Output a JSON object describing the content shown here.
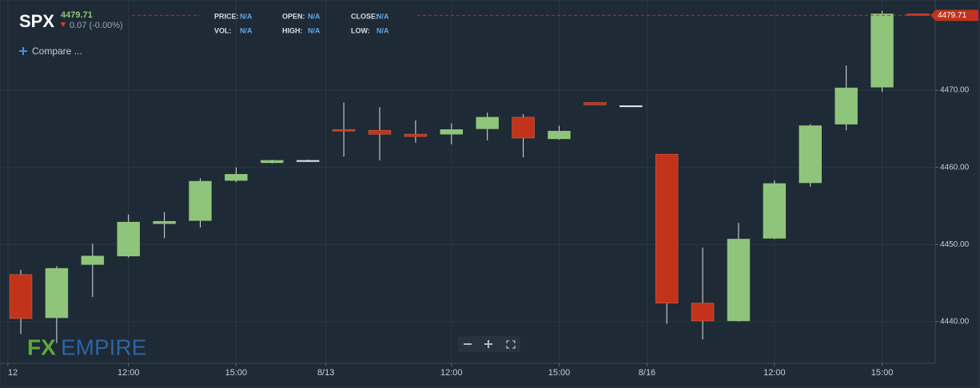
{
  "chart_data": {
    "type": "candlestick",
    "symbol": "SPX",
    "last_price": 4479.71,
    "change": "0.07 (-0.00%)",
    "fields": [
      {
        "label": "PRICE:",
        "value": "N/A"
      },
      {
        "label": "OPEN:",
        "value": "N/A"
      },
      {
        "label": "CLOSE:",
        "value": "N/A"
      },
      {
        "label": "VOL:",
        "value": "N/A"
      },
      {
        "label": "HIGH:",
        "value": "N/A"
      },
      {
        "label": "LOW:",
        "value": "N/A"
      }
    ],
    "compare": "Compare ...",
    "watermark": [
      "FX",
      "EMPIRE"
    ],
    "up_color": "#8fc57a",
    "down_color": "#c1331a",
    "open": [
      4446.1,
      4440.5,
      4447.4,
      4448.5,
      4452.7,
      4453.1,
      4458.3,
      4460.6,
      4460.9,
      4464.9,
      4464.8,
      4464.3,
      4464.3,
      4465.0,
      4466.5,
      4463.7,
      4468.4,
      4468.0,
      4461.7,
      4442.4,
      4440.1,
      4450.8,
      4458.0,
      4465.6,
      4470.4,
      4479.9
    ],
    "high": [
      4446.7,
      4447.2,
      4450.1,
      4453.9,
      4454.2,
      4458.6,
      4460.0,
      4461.0,
      4461.0,
      4468.4,
      4467.8,
      4466.1,
      4465.7,
      4467.1,
      4466.9,
      4465.4,
      4468.4,
      4468.0,
      4461.7,
      4449.6,
      4452.8,
      4458.3,
      4465.6,
      4473.2,
      4480.3,
      4479.9
    ],
    "low": [
      4438.4,
      4437.2,
      4443.2,
      4448.3,
      4450.8,
      4452.2,
      4458.1,
      4460.5,
      4460.8,
      4461.4,
      4460.9,
      4463.2,
      4463.0,
      4463.5,
      4461.3,
      4463.6,
      4468.1,
      4468.0,
      4439.7,
      4437.7,
      4440.0,
      4450.7,
      4457.5,
      4464.8,
      4469.8,
      4479.7
    ],
    "close": [
      4440.4,
      4446.9,
      4448.5,
      4452.9,
      4453.0,
      4458.2,
      4459.1,
      4460.9,
      4460.9,
      4464.7,
      4464.3,
      4464.0,
      4464.9,
      4466.5,
      4463.8,
      4464.7,
      4468.1,
      4468.0,
      4442.4,
      4440.1,
      4450.7,
      4457.9,
      4465.4,
      4470.3,
      4479.9,
      4479.7
    ],
    "xlim": [
      -0.58,
      25.48
    ],
    "xticks": [
      {
        "value": -0.36,
        "label": "12"
      },
      {
        "value": 3,
        "label": "12:00"
      },
      {
        "value": 6,
        "label": "15:00"
      },
      {
        "value": 8.5,
        "label": "8/13"
      },
      {
        "value": 12,
        "label": "12:00"
      },
      {
        "value": 15,
        "label": "15:00"
      },
      {
        "value": 17.45,
        "label": "8/16"
      },
      {
        "value": 21,
        "label": "12:00"
      },
      {
        "value": 24,
        "label": "15:00"
      }
    ],
    "ylim": [
      4434.6,
      4481.7
    ],
    "yticks": [
      {
        "value": 4440,
        "label": "4440.00"
      },
      {
        "value": 4450,
        "label": "4450.00"
      },
      {
        "value": 4460,
        "label": "4460.00"
      },
      {
        "value": 4470,
        "label": "4470.00"
      }
    ],
    "grid": true
  }
}
